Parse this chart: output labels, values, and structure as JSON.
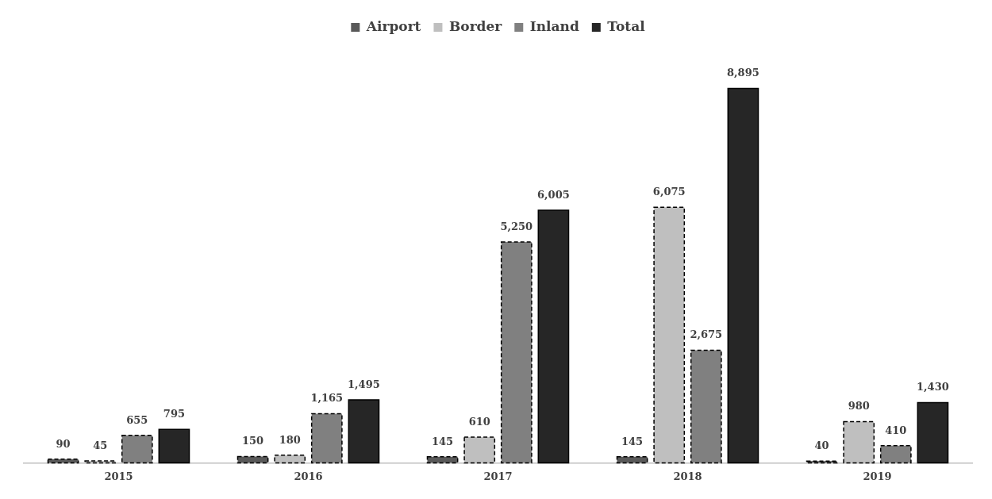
{
  "chart_data": {
    "type": "bar",
    "categories": [
      "2015",
      "2016",
      "2017",
      "2018",
      "2019"
    ],
    "series": [
      {
        "name": "Airport",
        "color": "#595959",
        "line_style": "dashed",
        "values": [
          90,
          150,
          145,
          145,
          40
        ],
        "value_labels": [
          "90",
          "150",
          "145",
          "145",
          "40"
        ]
      },
      {
        "name": "Border",
        "color": "#bfbfbf",
        "line_style": "dashed",
        "values": [
          45,
          180,
          610,
          6075,
          980
        ],
        "value_labels": [
          "45",
          "180",
          "610",
          "6,075",
          "980"
        ]
      },
      {
        "name": "Inland",
        "color": "#808080",
        "line_style": "dashed",
        "values": [
          655,
          1165,
          5250,
          2675,
          410
        ],
        "value_labels": [
          "655",
          "1,165",
          "5,250",
          "2,675",
          "410"
        ]
      },
      {
        "name": "Total",
        "color": "#262626",
        "line_style": "solid",
        "values": [
          795,
          1495,
          6005,
          8895,
          1430
        ],
        "value_labels": [
          "795",
          "1,495",
          "6,005",
          "8,895",
          "1,430"
        ]
      }
    ],
    "legend": "top",
    "grid": false
  }
}
